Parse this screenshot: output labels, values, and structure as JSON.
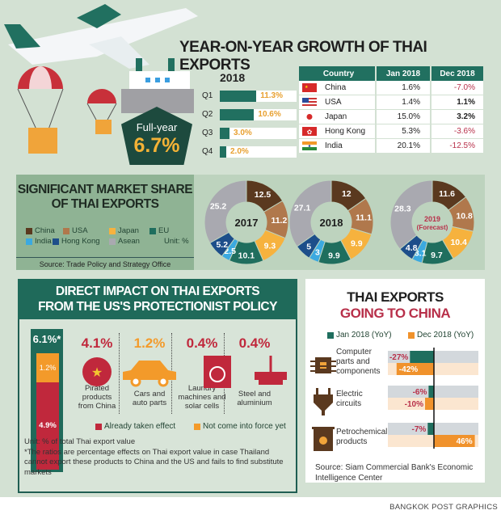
{
  "header": {
    "title": "YEAR-ON-YEAR GROWTH OF THAI EXPORTS"
  },
  "quarterly": {
    "year": "2018",
    "full_year_label": "Full-year",
    "full_year_value": "6.7%",
    "rows": [
      {
        "q": "Q1",
        "value": 11.3,
        "label": "11.3%"
      },
      {
        "q": "Q2",
        "value": 10.6,
        "label": "10.6%"
      },
      {
        "q": "Q3",
        "value": 3.0,
        "label": "3.0%"
      },
      {
        "q": "Q4",
        "value": 2.0,
        "label": "2.0%"
      }
    ]
  },
  "country_table": {
    "headers": [
      "Country",
      "Jan 2018",
      "Dec 2018"
    ],
    "rows": [
      {
        "country": "China",
        "jan": "1.6%",
        "dec": "-7.0%",
        "flag": "china-flag"
      },
      {
        "country": "USA",
        "jan": "1.4%",
        "dec": "1.1%",
        "flag": "usa-flag"
      },
      {
        "country": "Japan",
        "jan": "15.0%",
        "dec": "3.2%",
        "flag": "japan-flag"
      },
      {
        "country": "Hong Kong",
        "jan": "5.3%",
        "dec": "-3.6%",
        "flag": "hongkong-flag"
      },
      {
        "country": "India",
        "jan": "20.1%",
        "dec": "-12.5%",
        "flag": "india-flag"
      }
    ]
  },
  "market_share": {
    "title_line1": "SIGNIFICANT MARKET SHARE",
    "title_line2": "OF THAI EXPORTS",
    "unit": "Unit: %",
    "source": "Source: Trade Policy and Strategy Office",
    "legend": [
      {
        "name": "China",
        "color": "#5a391f"
      },
      {
        "name": "USA",
        "color": "#b0784c"
      },
      {
        "name": "Japan",
        "color": "#f6b23e"
      },
      {
        "name": "EU",
        "color": "#1f6e5e"
      },
      {
        "name": "India",
        "color": "#3ba9e0"
      },
      {
        "name": "Hong Kong",
        "color": "#1d4e8a"
      },
      {
        "name": "Asean",
        "color": "#a9a9b0"
      }
    ]
  },
  "chart_data": [
    {
      "type": "pie",
      "title": "2017",
      "categories": [
        "China",
        "USA",
        "Japan",
        "EU",
        "India",
        "Hong Kong",
        "Asean"
      ],
      "values": [
        12.5,
        11.2,
        9.3,
        10.1,
        2.5,
        5.2,
        25.2
      ],
      "labels": [
        "12.5",
        "11.2",
        "9.3",
        "10.1",
        "2.5",
        "5.2",
        "25.2"
      ]
    },
    {
      "type": "pie",
      "title": "2018",
      "categories": [
        "China",
        "USA",
        "Japan",
        "EU",
        "India",
        "Hong Kong",
        "Asean"
      ],
      "values": [
        12,
        11.1,
        9.9,
        9.9,
        3,
        5,
        27.1
      ],
      "labels": [
        "12",
        "11.1",
        "9.9",
        "9.9",
        "3",
        "5",
        "27.1"
      ]
    },
    {
      "type": "pie",
      "title": "2019",
      "subtitle": "(Forecast)",
      "categories": [
        "China",
        "USA",
        "Japan",
        "EU",
        "India",
        "Hong Kong",
        "Asean"
      ],
      "values": [
        11.6,
        10.8,
        10.4,
        9.7,
        3.1,
        4.8,
        28.3
      ],
      "labels": [
        "11.6",
        "10.8",
        "10.4",
        "9.7",
        "3.1",
        "4.8",
        "28.3"
      ]
    },
    {
      "type": "bar",
      "title": "THAI EXPORTS GOING TO CHINA",
      "series": [
        {
          "name": "Jan 2018 (YoY)",
          "color": "#1f6e5e",
          "values": [
            -27,
            -6,
            -7
          ]
        },
        {
          "name": "Dec 2018 (YoY)",
          "color": "#f0922c",
          "values": [
            -42,
            -10,
            46
          ]
        }
      ],
      "categories": [
        "Computer parts and components",
        "Electric circuits",
        "Petrochemical products"
      ],
      "xlim": [
        -50,
        50
      ]
    }
  ],
  "direct_impact": {
    "title_line1": "DIRECT IMPACT ON THAI EXPORTS",
    "title_line2": "FROM THE US'S PROTECTIONIST POLICY",
    "total": {
      "label": "6.1%*",
      "taken": 4.9,
      "taken_label": "4.9%",
      "pending": 1.2,
      "pending_label": "1.2%"
    },
    "items": [
      {
        "value": "4.1%",
        "label": [
          "Pirated",
          "products",
          "from China"
        ],
        "status": "taken"
      },
      {
        "value": "1.2%",
        "label": [
          "Cars and",
          "auto parts"
        ],
        "status": "pending"
      },
      {
        "value": "0.4%",
        "label": [
          "Laundry",
          "machines and",
          "solar cells"
        ],
        "status": "taken"
      },
      {
        "value": "0.4%",
        "label": [
          "Steel and",
          "aluminium"
        ],
        "status": "taken"
      }
    ],
    "legend_taken": "Already taken effect",
    "legend_pending": "Not come into force yet",
    "unit": "Unit: % of total Thai export value",
    "note": "*The ratios are percentage effects on Thai export value in case Thailand cannot export these products to China and the US and fails to find substitute markets",
    "colors": {
      "taken": "#c0283c",
      "pending": "#f39a2a"
    }
  },
  "china_exports": {
    "title_line1": "THAI EXPORTS",
    "title_line2": "GOING TO CHINA",
    "legend_jan": "Jan 2018 (YoY)",
    "legend_dec": "Dec 2018 (YoY)",
    "rows": [
      {
        "label": [
          "Computer",
          "parts and",
          "components"
        ],
        "jan_label": "-27%",
        "dec_label": "-42%"
      },
      {
        "label": [
          "Electric",
          "circuits"
        ],
        "jan_label": "-6%",
        "dec_label": "-10%"
      },
      {
        "label": [
          "Petrochemical",
          "products"
        ],
        "jan_label": "-7%",
        "dec_label": "46%"
      }
    ],
    "source": "Source: Siam Commercial Bank's Economic Intelligence Center"
  },
  "credit": "BANGKOK POST GRAPHICS"
}
